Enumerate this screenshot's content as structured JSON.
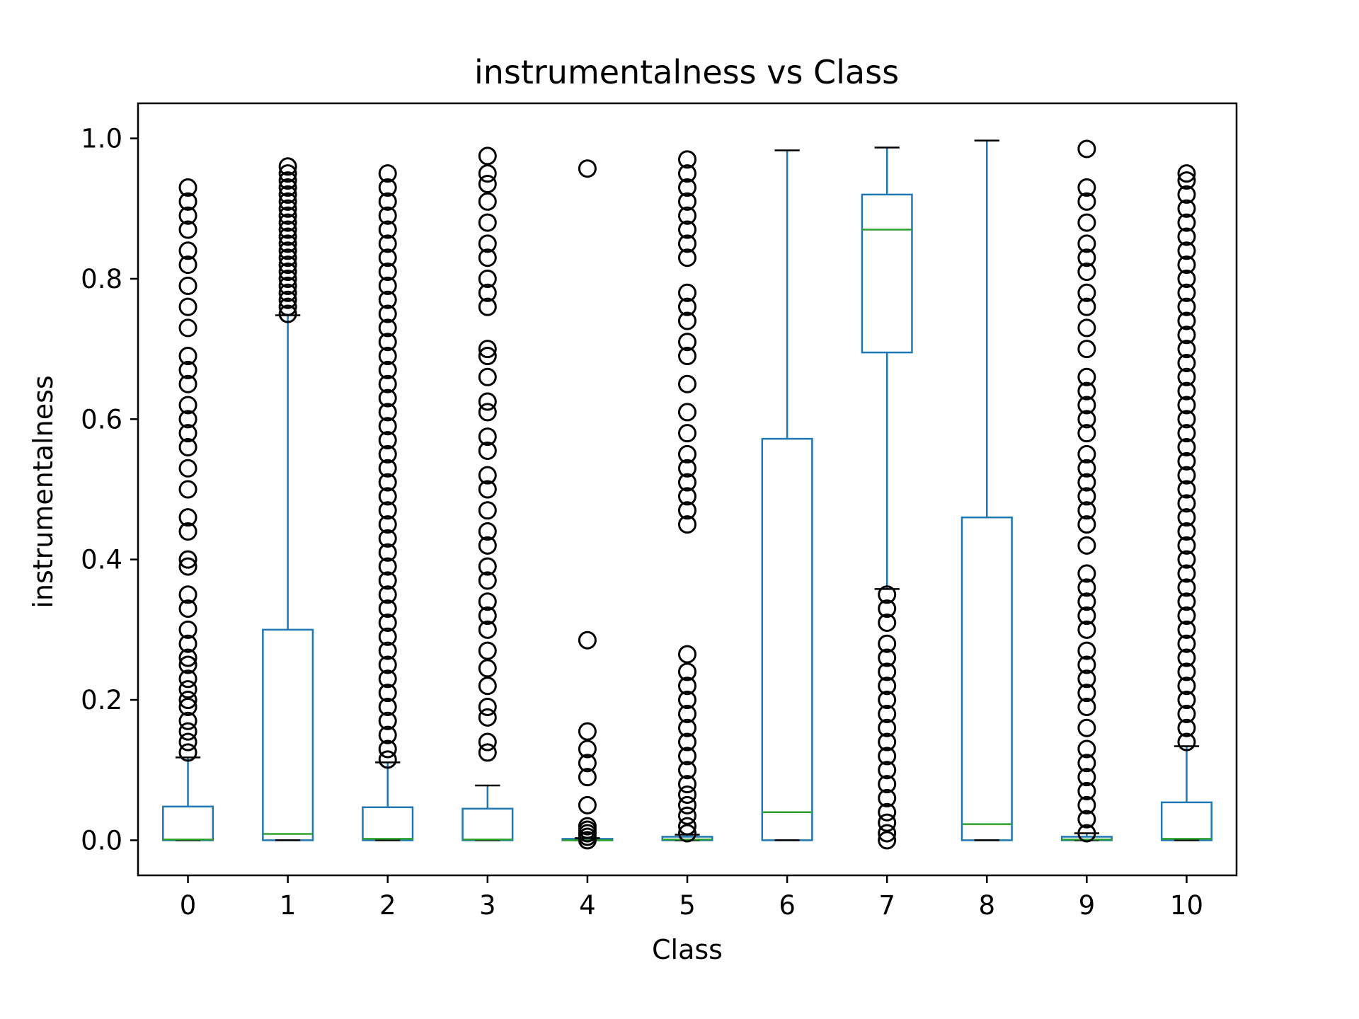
{
  "chart_data": {
    "type": "box",
    "title": "instrumentalness vs Class",
    "xlabel": "Class",
    "ylabel": "instrumentalness",
    "ylim": [
      -0.05,
      1.05
    ],
    "y_ticks": [
      0.0,
      0.2,
      0.4,
      0.6,
      0.8,
      1.0
    ],
    "y_tick_labels": [
      "0.0",
      "0.2",
      "0.4",
      "0.6",
      "0.8",
      "1.0"
    ],
    "grid": false,
    "legend": "none",
    "colors": {
      "box": "#1f77b4",
      "median": "#2ca02c",
      "cap": "#000000",
      "flier": "#000000"
    },
    "categories": [
      "0",
      "1",
      "2",
      "3",
      "4",
      "5",
      "6",
      "7",
      "8",
      "9",
      "10"
    ],
    "boxes": [
      {
        "category": "0",
        "whislo": 0.0,
        "q1": 0.0,
        "med": 0.001,
        "q3": 0.048,
        "whishi": 0.118,
        "fliers": [
          0.125,
          0.14,
          0.155,
          0.17,
          0.19,
          0.2,
          0.215,
          0.23,
          0.25,
          0.26,
          0.28,
          0.3,
          0.33,
          0.35,
          0.39,
          0.4,
          0.44,
          0.46,
          0.5,
          0.53,
          0.56,
          0.58,
          0.6,
          0.62,
          0.65,
          0.67,
          0.69,
          0.73,
          0.76,
          0.79,
          0.82,
          0.84,
          0.87,
          0.89,
          0.91,
          0.93
        ]
      },
      {
        "category": "1",
        "whislo": 0.0,
        "q1": 0.0,
        "med": 0.009,
        "q3": 0.3,
        "whishi": 0.748,
        "fliers": [
          0.75,
          0.76,
          0.77,
          0.78,
          0.79,
          0.8,
          0.81,
          0.82,
          0.83,
          0.84,
          0.85,
          0.86,
          0.87,
          0.88,
          0.89,
          0.9,
          0.91,
          0.92,
          0.93,
          0.94,
          0.95,
          0.96
        ]
      },
      {
        "category": "2",
        "whislo": 0.0,
        "q1": 0.0,
        "med": 0.002,
        "q3": 0.047,
        "whishi": 0.111,
        "fliers": [
          0.115,
          0.13,
          0.15,
          0.17,
          0.19,
          0.21,
          0.23,
          0.25,
          0.27,
          0.29,
          0.31,
          0.33,
          0.35,
          0.37,
          0.39,
          0.41,
          0.43,
          0.45,
          0.47,
          0.49,
          0.51,
          0.53,
          0.55,
          0.57,
          0.59,
          0.61,
          0.63,
          0.65,
          0.67,
          0.69,
          0.71,
          0.73,
          0.75,
          0.77,
          0.79,
          0.81,
          0.83,
          0.85,
          0.87,
          0.89,
          0.91,
          0.93,
          0.95
        ]
      },
      {
        "category": "3",
        "whislo": 0.0,
        "q1": 0.0,
        "med": 0.001,
        "q3": 0.045,
        "whishi": 0.078,
        "fliers": [
          0.125,
          0.14,
          0.175,
          0.19,
          0.22,
          0.245,
          0.27,
          0.3,
          0.32,
          0.34,
          0.37,
          0.39,
          0.42,
          0.44,
          0.47,
          0.5,
          0.52,
          0.555,
          0.575,
          0.61,
          0.625,
          0.66,
          0.69,
          0.7,
          0.76,
          0.78,
          0.8,
          0.83,
          0.85,
          0.88,
          0.91,
          0.935,
          0.95,
          0.975
        ]
      },
      {
        "category": "4",
        "whislo": 0.0,
        "q1": 0.0,
        "med": 0.0,
        "q3": 0.002,
        "whishi": 0.003,
        "fliers": [
          0.0,
          0.005,
          0.01,
          0.015,
          0.02,
          0.05,
          0.09,
          0.11,
          0.13,
          0.155,
          0.285,
          0.957
        ]
      },
      {
        "category": "5",
        "whislo": 0.0,
        "q1": 0.0,
        "med": 0.001,
        "q3": 0.005,
        "whishi": 0.008,
        "fliers": [
          0.01,
          0.02,
          0.035,
          0.05,
          0.065,
          0.08,
          0.1,
          0.12,
          0.14,
          0.16,
          0.18,
          0.2,
          0.22,
          0.24,
          0.265,
          0.45,
          0.47,
          0.49,
          0.51,
          0.53,
          0.55,
          0.58,
          0.61,
          0.65,
          0.69,
          0.71,
          0.74,
          0.76,
          0.78,
          0.83,
          0.85,
          0.87,
          0.89,
          0.91,
          0.93,
          0.95,
          0.97
        ]
      },
      {
        "category": "6",
        "whislo": 0.0,
        "q1": 0.0,
        "med": 0.04,
        "q3": 0.572,
        "whishi": 0.983,
        "fliers": []
      },
      {
        "category": "7",
        "whislo": 0.358,
        "q1": 0.695,
        "med": 0.87,
        "q3": 0.92,
        "whishi": 0.987,
        "fliers": [
          0.0,
          0.01,
          0.025,
          0.04,
          0.06,
          0.08,
          0.1,
          0.12,
          0.14,
          0.16,
          0.18,
          0.2,
          0.22,
          0.24,
          0.26,
          0.28,
          0.31,
          0.33,
          0.35
        ]
      },
      {
        "category": "8",
        "whislo": 0.0,
        "q1": 0.0,
        "med": 0.023,
        "q3": 0.46,
        "whishi": 0.997,
        "fliers": []
      },
      {
        "category": "9",
        "whislo": 0.0,
        "q1": 0.0,
        "med": 0.001,
        "q3": 0.005,
        "whishi": 0.01,
        "fliers": [
          0.01,
          0.03,
          0.05,
          0.07,
          0.09,
          0.11,
          0.13,
          0.16,
          0.19,
          0.21,
          0.23,
          0.25,
          0.27,
          0.3,
          0.32,
          0.34,
          0.36,
          0.38,
          0.42,
          0.45,
          0.47,
          0.49,
          0.51,
          0.53,
          0.55,
          0.58,
          0.6,
          0.62,
          0.64,
          0.66,
          0.7,
          0.73,
          0.76,
          0.78,
          0.81,
          0.83,
          0.85,
          0.88,
          0.91,
          0.93,
          0.985
        ]
      },
      {
        "category": "10",
        "whislo": 0.0,
        "q1": 0.0,
        "med": 0.002,
        "q3": 0.054,
        "whishi": 0.134,
        "fliers": [
          0.14,
          0.16,
          0.18,
          0.2,
          0.22,
          0.24,
          0.26,
          0.28,
          0.3,
          0.32,
          0.34,
          0.36,
          0.38,
          0.4,
          0.42,
          0.44,
          0.46,
          0.48,
          0.5,
          0.52,
          0.54,
          0.56,
          0.58,
          0.6,
          0.62,
          0.64,
          0.66,
          0.68,
          0.7,
          0.72,
          0.74,
          0.76,
          0.78,
          0.8,
          0.82,
          0.84,
          0.86,
          0.88,
          0.9,
          0.92,
          0.94,
          0.95
        ]
      }
    ]
  }
}
